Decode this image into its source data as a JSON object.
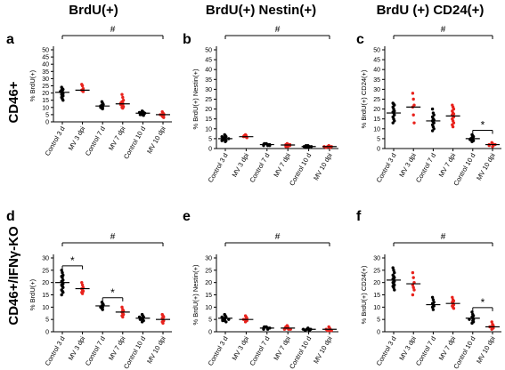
{
  "figure": {
    "col_titles": [
      "BrdU(+)",
      "BrdU(+) Nestin(+)",
      "BrdU (+) CD24(+)"
    ],
    "row_labels": [
      "CD46+",
      "CD46+/IFNγ-KO"
    ],
    "panel_letters": [
      "a",
      "b",
      "c",
      "d",
      "e",
      "f"
    ],
    "colors": {
      "control": "#000000",
      "mv": "#e8221c",
      "axis": "#000000"
    }
  },
  "chart_data": [
    {
      "type": "scatter",
      "panel": "a",
      "ylabel": "% BrdU(+)",
      "ylim": [
        0,
        50
      ],
      "yticks": [
        0,
        5,
        10,
        15,
        20,
        25,
        30,
        35,
        40,
        45,
        50
      ],
      "categories": [
        "Control 3 d",
        "MV 3 dpi",
        "Control 7 d",
        "MV 7 dpi",
        "Control 10 d",
        "MV 10 dpi"
      ],
      "means": [
        20.5,
        22,
        11,
        12.5,
        6,
        5
      ],
      "points": [
        [
          24,
          23,
          22.5,
          22,
          21,
          21,
          20.5,
          20,
          19.5,
          19,
          18.5,
          18,
          17,
          16,
          15
        ],
        [
          26,
          25,
          23,
          22,
          21.5,
          21
        ],
        [
          14,
          13,
          12,
          11.5,
          11,
          11,
          10.5,
          10,
          10,
          9.5,
          9
        ],
        [
          19,
          17,
          15,
          14,
          13,
          13,
          12.5,
          12,
          12,
          11.5,
          11,
          10.5,
          10,
          9.5
        ],
        [
          7.5,
          7,
          6.5,
          6.5,
          6,
          6,
          6,
          5.5,
          5.5,
          5,
          5,
          4.5
        ],
        [
          7,
          6,
          5.5,
          5,
          5,
          4.5,
          4,
          3.5,
          3
        ]
      ],
      "annotations": [
        {
          "text": "#",
          "from": 0,
          "to": 5
        }
      ]
    },
    {
      "type": "scatter",
      "panel": "b",
      "ylabel": "% BrdU(+) Nestin(+)",
      "ylim": [
        0,
        50
      ],
      "yticks": [
        0,
        5,
        10,
        15,
        20,
        25,
        30,
        35,
        40,
        45,
        50
      ],
      "categories": [
        "Control 3 d",
        "MV 3 dpi",
        "Control 7 d",
        "MV 7 dpi",
        "Control 10 d",
        "MV 10 dpi"
      ],
      "means": [
        5,
        6,
        2,
        1.8,
        1,
        1
      ],
      "points": [
        [
          7,
          6.5,
          6,
          6,
          5.5,
          5.5,
          5,
          5,
          5,
          4.5,
          4.5,
          4,
          4,
          3.5
        ],
        [
          7,
          6.5,
          6.5,
          6,
          6,
          5.5
        ],
        [
          2.5,
          2.5,
          2,
          2,
          2,
          1.5,
          1.5,
          1.5
        ],
        [
          2.5,
          2,
          2,
          2,
          1.5,
          1.5,
          1.5,
          1,
          1
        ],
        [
          1.5,
          1.5,
          1,
          1,
          1,
          1,
          0.5,
          0.5
        ],
        [
          1.5,
          1,
          1,
          1,
          1,
          0.5,
          0.5
        ]
      ],
      "annotations": [
        {
          "text": "#",
          "from": 0,
          "to": 5
        }
      ]
    },
    {
      "type": "scatter",
      "panel": "c",
      "ylabel": "% BrdU(+) CD24(+)",
      "ylim": [
        0,
        50
      ],
      "yticks": [
        0,
        5,
        10,
        15,
        20,
        25,
        30,
        35,
        40,
        45,
        50
      ],
      "categories": [
        "Control 3 d",
        "MV 3 dpi",
        "Control 7 d",
        "MV 7 dpi",
        "Control 10 d",
        "MV 10 dpi"
      ],
      "means": [
        18,
        21,
        14,
        16.5,
        5,
        2
      ],
      "points": [
        [
          23,
          22.5,
          22,
          21,
          20,
          19,
          18.5,
          18,
          17,
          16,
          15,
          14,
          13
        ],
        [
          28,
          25,
          22,
          21,
          17,
          13
        ],
        [
          20,
          18,
          17,
          16,
          15,
          14.5,
          14,
          13.5,
          13,
          12,
          11,
          10,
          9
        ],
        [
          22,
          21,
          20,
          19,
          18,
          17.5,
          17,
          16.5,
          16,
          15,
          14,
          13,
          12,
          11
        ],
        [
          7,
          6.5,
          6,
          5.5,
          5,
          5,
          4.5,
          4.5,
          4,
          3.5
        ],
        [
          3,
          2.5,
          2,
          2,
          2,
          1.5,
          1.5,
          1
        ]
      ],
      "annotations": [
        {
          "text": "#",
          "from": 0,
          "to": 5
        },
        {
          "text": "*",
          "from": 4,
          "to": 5
        }
      ]
    },
    {
      "type": "scatter",
      "panel": "d",
      "ylabel": "% BrdU(+)",
      "ylim": [
        0,
        30
      ],
      "yticks": [
        0,
        5,
        10,
        15,
        20,
        25,
        30
      ],
      "categories": [
        "Control 3 d",
        "MV 3 dpi",
        "Control 7 d",
        "MV 7 dpi",
        "Control 10 d",
        "MV 10 dpi"
      ],
      "means": [
        20,
        17.5,
        10.5,
        8,
        5.5,
        5
      ],
      "points": [
        [
          25,
          24,
          23,
          22.5,
          22,
          21,
          20.5,
          20,
          19.5,
          19,
          18.5,
          18,
          17,
          16.5,
          16,
          15
        ],
        [
          20,
          19,
          18,
          17.5,
          17,
          16.5,
          16,
          15.5
        ],
        [
          12,
          11.5,
          11,
          10.5,
          10,
          10,
          9.5,
          9
        ],
        [
          10,
          9,
          8.5,
          8,
          7.5,
          7,
          6.5,
          6
        ],
        [
          7,
          6.5,
          6,
          6,
          5.5,
          5.5,
          5,
          5,
          4.5,
          4
        ],
        [
          7,
          6.5,
          6,
          5.5,
          5,
          4.5,
          4,
          3.5
        ]
      ],
      "annotations": [
        {
          "text": "#",
          "from": 0,
          "to": 5
        },
        {
          "text": "*",
          "from": 0,
          "to": 1
        },
        {
          "text": "*",
          "from": 2,
          "to": 3
        }
      ]
    },
    {
      "type": "scatter",
      "panel": "e",
      "ylabel": "% BrdU(+) Nestin(+)",
      "ylim": [
        0,
        30
      ],
      "yticks": [
        0,
        5,
        10,
        15,
        20,
        25,
        30
      ],
      "categories": [
        "Control 3 d",
        "MV 3 dpi",
        "Control 7 d",
        "MV 7 dpi",
        "Control 10 d",
        "MV 10 dpi"
      ],
      "means": [
        5.5,
        5,
        1.5,
        1.5,
        1,
        1
      ],
      "points": [
        [
          7,
          6.5,
          6,
          6,
          5.5,
          5.5,
          5,
          5,
          5,
          4.5,
          4.5,
          4
        ],
        [
          6.5,
          6,
          5.5,
          5,
          5,
          4.5,
          4
        ],
        [
          2,
          2,
          1.5,
          1.5,
          1.5,
          1,
          1
        ],
        [
          2.5,
          2,
          2,
          1.5,
          1.5,
          1,
          1,
          1
        ],
        [
          1.5,
          1,
          1,
          1,
          1,
          0.5,
          0.5
        ],
        [
          2,
          1.5,
          1,
          1,
          0.5,
          0.5,
          0.5
        ]
      ],
      "annotations": [
        {
          "text": "#",
          "from": 0,
          "to": 5
        }
      ]
    },
    {
      "type": "scatter",
      "panel": "f",
      "ylabel": "% BrdU(+) CD24(+)",
      "ylim": [
        0,
        30
      ],
      "yticks": [
        0,
        5,
        10,
        15,
        20,
        25,
        30
      ],
      "categories": [
        "Control 3 d",
        "MV 3 dpi",
        "Control 7 d",
        "MV 7 dpi",
        "Control 10 d",
        "MV 10 dpi"
      ],
      "means": [
        21,
        19.5,
        11,
        11.5,
        5.5,
        2
      ],
      "points": [
        [
          26,
          25,
          24,
          23,
          22.5,
          22,
          21.5,
          21,
          20.5,
          20,
          19.5,
          19,
          18.5,
          18,
          17
        ],
        [
          24,
          22,
          20,
          19,
          18,
          17,
          15
        ],
        [
          14,
          13,
          12,
          11.5,
          11,
          10.5,
          10,
          9
        ],
        [
          14,
          13,
          12.5,
          12,
          11.5,
          11,
          10.5,
          10,
          9.5
        ],
        [
          8,
          7,
          6.5,
          6,
          5.5,
          5,
          5,
          4.5,
          4,
          3.5
        ],
        [
          4,
          3,
          2.5,
          2,
          2,
          1.5,
          1
        ]
      ],
      "annotations": [
        {
          "text": "#",
          "from": 0,
          "to": 5
        },
        {
          "text": "*",
          "from": 4,
          "to": 5
        }
      ]
    }
  ]
}
